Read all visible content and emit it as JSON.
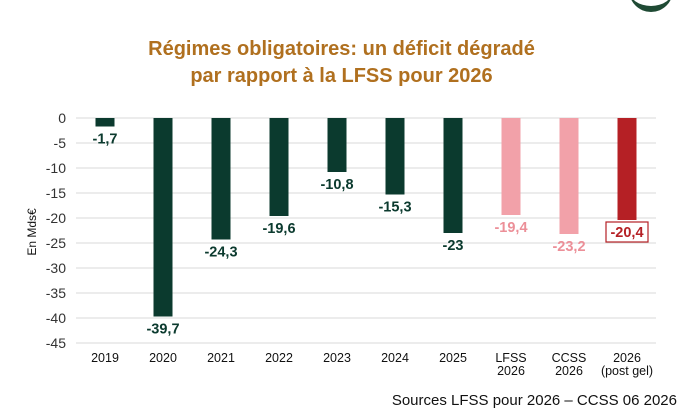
{
  "chart_data": {
    "type": "bar",
    "title_lines": [
      "Régimes obligatoires: un déficit dégradé",
      "par rapport à la LFSS pour 2026"
    ],
    "ylabel": "En Mds€",
    "xlabel": "",
    "ylim": [
      -45,
      0
    ],
    "yticks": [
      0,
      -5,
      -10,
      -15,
      -20,
      -25,
      -30,
      -35,
      -40,
      -45
    ],
    "grid": true,
    "categories": [
      [
        "2019"
      ],
      [
        "2020"
      ],
      [
        "2021"
      ],
      [
        "2022"
      ],
      [
        "2023"
      ],
      [
        "2024"
      ],
      [
        "2025"
      ],
      [
        "LFSS",
        "2026"
      ],
      [
        "CCSS",
        "2026"
      ],
      [
        "2026",
        "(post gel)"
      ]
    ],
    "values": [
      -1.7,
      -39.7,
      -24.3,
      -19.6,
      -10.8,
      -15.3,
      -23,
      -19.4,
      -23.2,
      -20.4
    ],
    "data_labels": [
      "-1,7",
      "-39,7",
      "-24,3",
      "-19,6",
      "-10,8",
      "-15,3",
      "-23",
      "-19,4",
      "-23,2",
      "-20,4"
    ],
    "bar_colors": [
      "#0b3a2e",
      "#0b3a2e",
      "#0b3a2e",
      "#0b3a2e",
      "#0b3a2e",
      "#0b3a2e",
      "#0b3a2e",
      "#f2a1a9",
      "#f2a1a9",
      "#b52025"
    ],
    "label_colors": [
      "#0b3a2e",
      "#0b3a2e",
      "#0b3a2e",
      "#0b3a2e",
      "#0b3a2e",
      "#0b3a2e",
      "#0b3a2e",
      "#ec8f98",
      "#ec8f98",
      "#b52025"
    ],
    "boxed_label_index": 9,
    "title_color": "#b0701f"
  },
  "source": "Sources LFSS pour 2026 – CCSS 06 2026"
}
